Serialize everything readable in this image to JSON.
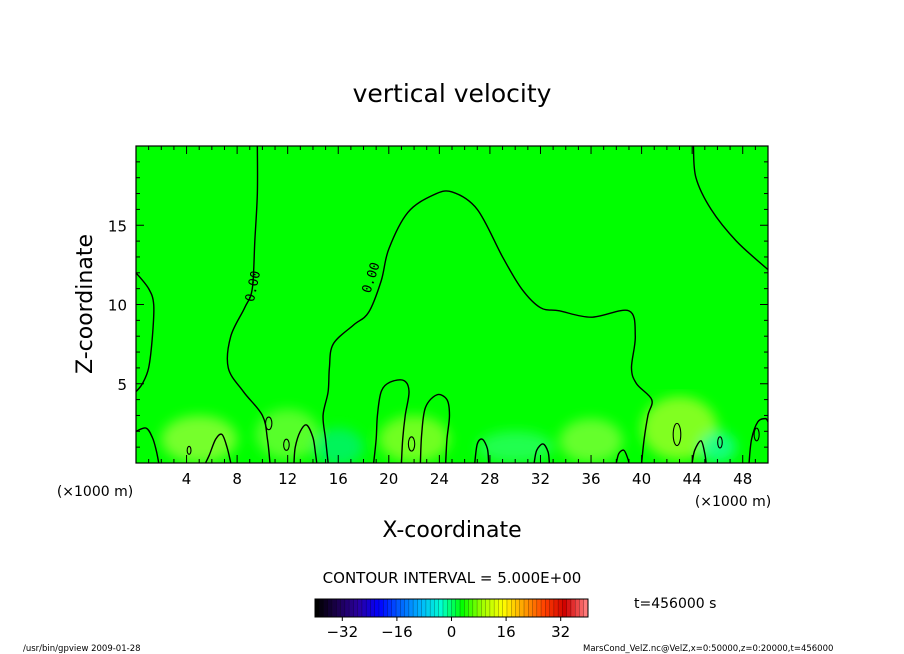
{
  "chart_data": {
    "type": "heatmap",
    "title": "vertical velocity",
    "xlabel": "X-coordinate",
    "ylabel": "Z-coordinate",
    "x_unit": "(×1000 m)",
    "y_unit": "(×1000 m)",
    "xlim": [
      0,
      50
    ],
    "ylim": [
      0,
      20
    ],
    "x_ticks": [
      4,
      8,
      12,
      16,
      20,
      24,
      28,
      32,
      36,
      40,
      44,
      48
    ],
    "y_ticks": [
      5,
      10,
      15
    ],
    "contour_interval_label": "CONTOUR INTERVAL = 5.000E+00",
    "contour_labels": [
      "0.00",
      "0.00"
    ],
    "time_label": "t=456000 s",
    "colorbar": {
      "min": -40,
      "max": 40,
      "ticks": [
        -32,
        -16,
        0,
        16,
        32
      ],
      "colors": [
        "#000000",
        "#1c0050",
        "#2a00a0",
        "#0000ff",
        "#0060ff",
        "#00b4ff",
        "#00ffd0",
        "#00ff00",
        "#a0ff00",
        "#ffff00",
        "#ffa000",
        "#ff4000",
        "#d00000",
        "#ff7a7a"
      ]
    },
    "field_background_color": "#00ff00",
    "contour_lines": [
      {
        "level": 0,
        "points": [
          [
            0,
            12
          ],
          [
            1,
            11
          ],
          [
            1.4,
            10
          ],
          [
            1.3,
            8
          ],
          [
            1,
            6
          ],
          [
            0.5,
            5
          ],
          [
            0,
            4.5
          ]
        ]
      },
      {
        "level": 0,
        "points": [
          [
            9.6,
            20
          ],
          [
            9.6,
            17
          ],
          [
            9.4,
            14
          ],
          [
            9.2,
            11
          ],
          [
            8.6,
            9.8
          ],
          [
            7.5,
            8
          ],
          [
            7.3,
            6
          ],
          [
            8.5,
            4.5
          ],
          [
            10,
            3
          ],
          [
            10.4,
            1.5
          ],
          [
            10.6,
            0
          ]
        ]
      },
      {
        "level": 0,
        "points": [
          [
            15.2,
            0
          ],
          [
            15,
            1.5
          ],
          [
            14.8,
            3
          ],
          [
            15.2,
            4.5
          ],
          [
            15.3,
            6
          ],
          [
            15.6,
            7.5
          ],
          [
            17.2,
            8.7
          ],
          [
            18.4,
            9.5
          ],
          [
            19.4,
            11.5
          ],
          [
            20,
            13.5
          ],
          [
            21.5,
            15.8
          ],
          [
            23.5,
            16.9
          ],
          [
            25,
            17.1
          ],
          [
            27,
            16
          ],
          [
            29,
            13
          ],
          [
            30.5,
            11
          ],
          [
            32,
            9.8
          ],
          [
            33.5,
            9.6
          ],
          [
            36,
            9.2
          ],
          [
            39,
            9.6
          ],
          [
            39.5,
            8
          ],
          [
            39.2,
            6
          ],
          [
            39.6,
            5
          ],
          [
            40.8,
            4
          ],
          [
            40.5,
            3
          ],
          [
            40.2,
            1.5
          ],
          [
            40,
            0
          ]
        ]
      },
      {
        "level": 0,
        "points": [
          [
            18.8,
            0
          ],
          [
            19,
            1.5
          ],
          [
            19.1,
            3
          ],
          [
            19.4,
            4.5
          ],
          [
            20.1,
            5.1
          ],
          [
            21.2,
            5.2
          ],
          [
            21.6,
            4.5
          ],
          [
            21.3,
            3
          ],
          [
            21.1,
            1.5
          ],
          [
            21,
            0
          ]
        ]
      },
      {
        "level": 0,
        "points": [
          [
            22.5,
            0
          ],
          [
            22.6,
            1.8
          ],
          [
            22.9,
            3.5
          ],
          [
            23.8,
            4.3
          ],
          [
            24.6,
            4
          ],
          [
            24.8,
            3
          ],
          [
            24.6,
            1.5
          ],
          [
            24.5,
            0
          ]
        ]
      },
      {
        "level": 0,
        "points": [
          [
            44.1,
            20
          ],
          [
            44.3,
            18
          ],
          [
            45.5,
            16
          ],
          [
            47.5,
            14
          ],
          [
            50,
            12.2
          ]
        ]
      },
      {
        "level": 0,
        "points": [
          [
            0,
            2
          ],
          [
            0.8,
            2.2
          ],
          [
            1.3,
            1.6
          ],
          [
            1.6,
            0.8
          ],
          [
            1.8,
            0
          ]
        ]
      },
      {
        "level": 0,
        "points": [
          [
            5.5,
            0
          ],
          [
            5.8,
            0.5
          ],
          [
            6.3,
            1.5
          ],
          [
            6.8,
            1.8
          ],
          [
            7.2,
            1.0
          ],
          [
            7.5,
            0
          ]
        ]
      },
      {
        "level": 0,
        "points": [
          [
            12.5,
            0
          ],
          [
            12.6,
            1
          ],
          [
            13,
            2
          ],
          [
            13.5,
            2.4
          ],
          [
            14,
            1.6
          ],
          [
            14.2,
            0.6
          ],
          [
            14.3,
            0
          ]
        ]
      },
      {
        "level": 0,
        "points": [
          [
            26.8,
            0
          ],
          [
            27,
            1.2
          ],
          [
            27.4,
            1.5
          ],
          [
            27.8,
            0.9
          ],
          [
            27.9,
            0
          ]
        ]
      },
      {
        "level": 0,
        "points": [
          [
            31.5,
            0
          ],
          [
            31.7,
            0.8
          ],
          [
            32.2,
            1.2
          ],
          [
            32.6,
            0.7
          ],
          [
            32.7,
            0
          ]
        ]
      },
      {
        "level": 0,
        "points": [
          [
            38,
            0
          ],
          [
            38.2,
            0.6
          ],
          [
            38.6,
            0.8
          ],
          [
            38.9,
            0.3
          ],
          [
            39,
            0
          ]
        ]
      },
      {
        "level": 0,
        "points": [
          [
            44,
            0
          ],
          [
            44.2,
            0.8
          ],
          [
            44.7,
            1.4
          ],
          [
            45,
            0.6
          ],
          [
            45.1,
            0
          ]
        ]
      },
      {
        "level": 0,
        "points": [
          [
            48.5,
            0
          ],
          [
            48.7,
            1.5
          ],
          [
            49.2,
            2.6
          ],
          [
            49.8,
            2.8
          ],
          [
            50,
            2.6
          ]
        ]
      }
    ],
    "small_contours": [
      {
        "cx": 11.9,
        "cy": 1.15,
        "rx": 0.22,
        "ry": 0.35
      },
      {
        "cx": 21.8,
        "cy": 1.2,
        "rx": 0.25,
        "ry": 0.45
      },
      {
        "cx": 42.8,
        "cy": 1.8,
        "rx": 0.3,
        "ry": 0.7
      },
      {
        "cx": 46.2,
        "cy": 1.3,
        "rx": 0.18,
        "ry": 0.35
      },
      {
        "cx": 10.5,
        "cy": 2.5,
        "rx": 0.25,
        "ry": 0.4
      },
      {
        "cx": 49.1,
        "cy": 1.8,
        "rx": 0.2,
        "ry": 0.4
      },
      {
        "cx": 4.2,
        "cy": 0.8,
        "rx": 0.15,
        "ry": 0.25
      }
    ],
    "field_perturbations": [
      {
        "cx": 5,
        "cy": 1.5,
        "rx": 3,
        "ry": 1.5,
        "color": "#a8ff40"
      },
      {
        "cx": 12,
        "cy": 1.8,
        "rx": 2.5,
        "ry": 1.6,
        "color": "#7cff3a"
      },
      {
        "cx": 16,
        "cy": 1.0,
        "rx": 2,
        "ry": 1.2,
        "color": "#00f080"
      },
      {
        "cx": 22,
        "cy": 1.5,
        "rx": 2.8,
        "ry": 1.5,
        "color": "#a0ff30"
      },
      {
        "cx": 30,
        "cy": 1.0,
        "rx": 3,
        "ry": 1.0,
        "color": "#30ff70"
      },
      {
        "cx": 36,
        "cy": 1.4,
        "rx": 2.5,
        "ry": 1.4,
        "color": "#90ff40"
      },
      {
        "cx": 43,
        "cy": 2.2,
        "rx": 3,
        "ry": 2.0,
        "color": "#b8ff30"
      },
      {
        "cx": 46,
        "cy": 1.0,
        "rx": 1.5,
        "ry": 1.0,
        "color": "#20ffb0"
      }
    ]
  },
  "footer": {
    "left": "/usr/bin/gpview   2009-01-28",
    "right": "MarsCond_VelZ.nc@VelZ,x=0:50000,z=0:20000,t=456000"
  }
}
